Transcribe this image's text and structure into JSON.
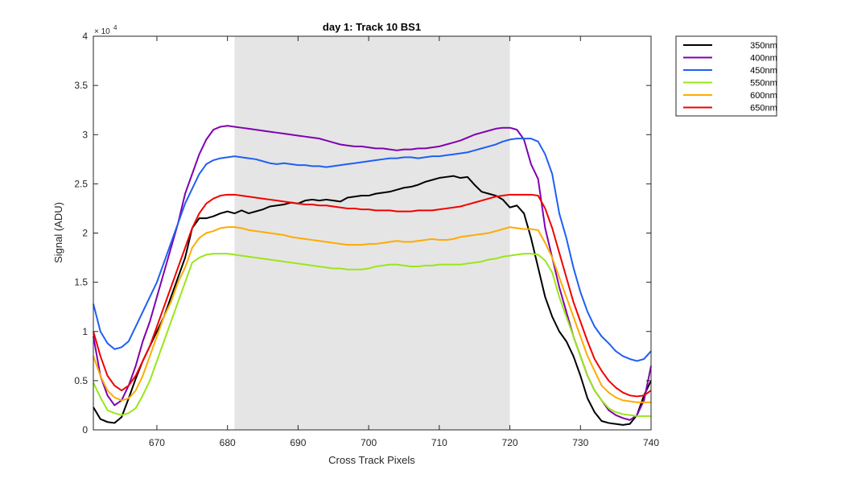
{
  "chart_data": {
    "type": "line",
    "title": "day 1: Track 10  BS1",
    "xlabel": "Cross Track Pixels",
    "ylabel": "Signal (ADU)",
    "xlim": [
      661,
      740
    ],
    "ylim": [
      0,
      40000
    ],
    "xticks": [
      670,
      680,
      690,
      700,
      710,
      720,
      730,
      740
    ],
    "yticks": [
      0,
      5000,
      10000,
      15000,
      20000,
      25000,
      30000,
      35000,
      40000
    ],
    "ytick_labels": [
      "0",
      "0.5",
      "1",
      "1.5",
      "2",
      "2.5",
      "3",
      "3.5",
      "4"
    ],
    "y_exponent_base": "× 10",
    "y_exponent_power": "4",
    "grid": false,
    "legend_position": "outside-top-right",
    "shaded_region": {
      "x": [
        681,
        720
      ],
      "color": "#e5e5e5"
    },
    "x": [
      661,
      662,
      663,
      664,
      665,
      666,
      667,
      668,
      669,
      670,
      671,
      672,
      673,
      674,
      675,
      676,
      677,
      678,
      679,
      680,
      681,
      682,
      683,
      684,
      685,
      686,
      687,
      688,
      689,
      690,
      691,
      692,
      693,
      694,
      695,
      696,
      697,
      698,
      699,
      700,
      701,
      702,
      703,
      704,
      705,
      706,
      707,
      708,
      709,
      710,
      711,
      712,
      713,
      714,
      715,
      716,
      717,
      718,
      719,
      720,
      721,
      722,
      723,
      724,
      725,
      726,
      727,
      728,
      729,
      730,
      731,
      732,
      733,
      734,
      735,
      736,
      737,
      738,
      739,
      740
    ],
    "series": [
      {
        "name": "350nm",
        "color": "#000000",
        "values": [
          2300,
          1100,
          800,
          700,
          1300,
          3200,
          5200,
          7000,
          8500,
          10000,
          11500,
          13500,
          15500,
          17500,
          20500,
          21500,
          21500,
          21700,
          22000,
          22200,
          22000,
          22300,
          22000,
          22200,
          22400,
          22700,
          22800,
          22900,
          23100,
          23000,
          23300,
          23400,
          23300,
          23400,
          23300,
          23200,
          23600,
          23700,
          23800,
          23800,
          24000,
          24100,
          24200,
          24400,
          24600,
          24700,
          24900,
          25200,
          25400,
          25600,
          25700,
          25800,
          25600,
          25700,
          24900,
          24200,
          24000,
          23800,
          23400,
          22600,
          22800,
          22000,
          19500,
          16500,
          13500,
          11500,
          10000,
          9000,
          7500,
          5500,
          3200,
          1800,
          900,
          700,
          600,
          500,
          600,
          1500,
          3500,
          5000
        ]
      },
      {
        "name": "400nm",
        "color": "#8000b0",
        "values": [
          9500,
          5500,
          3500,
          2500,
          3000,
          4500,
          6500,
          9000,
          11000,
          13500,
          16000,
          18500,
          21000,
          24000,
          26000,
          28000,
          29500,
          30500,
          30800,
          30900,
          30800,
          30700,
          30600,
          30500,
          30400,
          30300,
          30200,
          30100,
          30000,
          29900,
          29800,
          29700,
          29600,
          29400,
          29200,
          29000,
          28900,
          28800,
          28800,
          28700,
          28600,
          28600,
          28500,
          28400,
          28500,
          28500,
          28600,
          28600,
          28700,
          28800,
          29000,
          29200,
          29400,
          29700,
          30000,
          30200,
          30400,
          30600,
          30700,
          30700,
          30500,
          29500,
          27000,
          25500,
          20500,
          17500,
          14500,
          12000,
          9500,
          7500,
          5500,
          4000,
          3000,
          2000,
          1500,
          1200,
          1000,
          1500,
          3000,
          6500
        ]
      },
      {
        "name": "450nm",
        "color": "#1f5ff2",
        "values": [
          12800,
          10000,
          8800,
          8200,
          8400,
          9000,
          10500,
          12000,
          13500,
          15000,
          17000,
          19000,
          21000,
          23000,
          24500,
          26000,
          27000,
          27400,
          27600,
          27700,
          27800,
          27700,
          27600,
          27500,
          27300,
          27100,
          27000,
          27100,
          27000,
          26900,
          26900,
          26800,
          26800,
          26700,
          26800,
          26900,
          27000,
          27100,
          27200,
          27300,
          27400,
          27500,
          27600,
          27600,
          27700,
          27700,
          27600,
          27700,
          27800,
          27800,
          27900,
          28000,
          28100,
          28200,
          28400,
          28600,
          28800,
          29000,
          29300,
          29500,
          29600,
          29600,
          29600,
          29300,
          28000,
          26000,
          22000,
          19500,
          16500,
          14000,
          12000,
          10500,
          9500,
          8800,
          8000,
          7500,
          7200,
          7000,
          7200,
          8000
        ]
      },
      {
        "name": "550nm",
        "color": "#9ae619",
        "values": [
          4800,
          3300,
          2000,
          1700,
          1500,
          1700,
          2200,
          3500,
          5000,
          7000,
          9000,
          11000,
          13000,
          15000,
          17000,
          17500,
          17800,
          17900,
          17900,
          17900,
          17800,
          17700,
          17600,
          17500,
          17400,
          17300,
          17200,
          17100,
          17000,
          16900,
          16800,
          16700,
          16600,
          16500,
          16400,
          16400,
          16300,
          16300,
          16300,
          16400,
          16600,
          16700,
          16800,
          16800,
          16700,
          16600,
          16600,
          16700,
          16700,
          16800,
          16800,
          16800,
          16800,
          16900,
          17000,
          17100,
          17300,
          17400,
          17600,
          17700,
          17800,
          17900,
          17900,
          17800,
          17200,
          16000,
          13500,
          11500,
          9500,
          7500,
          5500,
          4000,
          3000,
          2200,
          1800,
          1600,
          1500,
          1400,
          1400,
          1400
        ]
      },
      {
        "name": "600nm",
        "color": "#ffab00",
        "values": [
          7500,
          5500,
          4000,
          3300,
          3000,
          3200,
          4000,
          5500,
          7500,
          9500,
          11500,
          13000,
          15000,
          16500,
          18500,
          19500,
          20000,
          20200,
          20500,
          20600,
          20600,
          20500,
          20300,
          20200,
          20100,
          20000,
          19900,
          19800,
          19600,
          19500,
          19400,
          19300,
          19200,
          19100,
          19000,
          18900,
          18800,
          18800,
          18800,
          18900,
          18900,
          19000,
          19100,
          19200,
          19100,
          19100,
          19200,
          19300,
          19400,
          19300,
          19300,
          19400,
          19600,
          19700,
          19800,
          19900,
          20000,
          20200,
          20400,
          20600,
          20500,
          20400,
          20400,
          20300,
          19000,
          17500,
          15500,
          13500,
          11500,
          9500,
          7500,
          6000,
          4500,
          3800,
          3300,
          3000,
          2900,
          2800,
          2800,
          2800
        ]
      },
      {
        "name": "650nm",
        "color": "#f20000",
        "values": [
          10000,
          7500,
          5500,
          4500,
          4000,
          4500,
          5500,
          7000,
          8500,
          10500,
          12500,
          14500,
          16500,
          18500,
          20500,
          22000,
          23000,
          23500,
          23800,
          23900,
          23900,
          23800,
          23700,
          23600,
          23500,
          23400,
          23300,
          23200,
          23100,
          23000,
          22900,
          22900,
          22800,
          22800,
          22700,
          22600,
          22500,
          22500,
          22400,
          22400,
          22300,
          22300,
          22300,
          22200,
          22200,
          22200,
          22300,
          22300,
          22300,
          22400,
          22500,
          22600,
          22700,
          22900,
          23100,
          23300,
          23500,
          23700,
          23800,
          23900,
          23900,
          23900,
          23900,
          23800,
          22500,
          20500,
          18000,
          15500,
          13000,
          11000,
          9000,
          7200,
          6000,
          5000,
          4300,
          3800,
          3500,
          3400,
          3500,
          4000
        ]
      }
    ]
  }
}
